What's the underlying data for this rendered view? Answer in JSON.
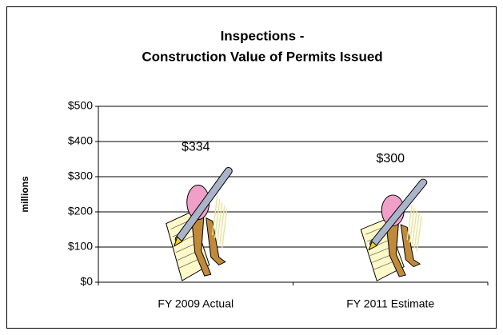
{
  "chart_data": {
    "type": "bar",
    "title": [
      "Inspections -",
      "Construction Value of Permits Issued"
    ],
    "y_label": "millions",
    "categories": [
      "FY 2009 Actual",
      "FY 2011 Estimate"
    ],
    "values": [
      334,
      300
    ],
    "value_labels": [
      "$334",
      "$300"
    ],
    "ylim": [
      0,
      500
    ],
    "yticks": [
      {
        "value": 0,
        "label": "$0"
      },
      {
        "value": 100,
        "label": "$100"
      },
      {
        "value": 200,
        "label": "$200"
      },
      {
        "value": 300,
        "label": "$300"
      },
      {
        "value": 400,
        "label": "$400"
      },
      {
        "value": 500,
        "label": "$500"
      }
    ],
    "grid": true
  }
}
